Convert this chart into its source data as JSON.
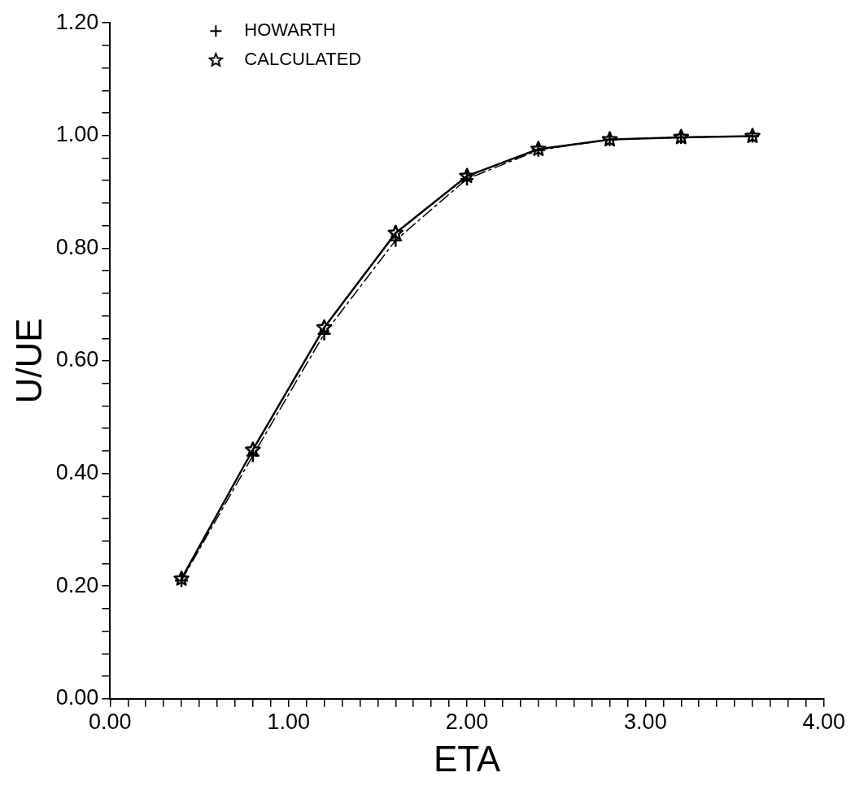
{
  "chart_data": {
    "type": "line",
    "xlabel": "ETA",
    "ylabel": "U/UE",
    "x": [
      0.4,
      0.8,
      1.2,
      1.6,
      2.0,
      2.4,
      2.8,
      3.2,
      3.6
    ],
    "series": [
      {
        "name": "HOWARTH",
        "color": "#000000",
        "marker": "cross",
        "line_style": "dashed",
        "values": [
          0.21,
          0.432,
          0.648,
          0.814,
          0.923,
          0.974,
          0.993,
          0.997,
          0.999
        ]
      },
      {
        "name": "CALCULATED",
        "color": "#000000",
        "marker": "star",
        "line_style": "solid",
        "values": [
          0.213,
          0.442,
          0.659,
          0.827,
          0.928,
          0.976,
          0.993,
          0.997,
          0.999
        ]
      }
    ],
    "xlim": [
      0,
      4
    ],
    "ylim": [
      0,
      1.2
    ],
    "xticks": [
      {
        "value": 0,
        "label": "0.00"
      },
      {
        "value": 0.1,
        "label": null
      },
      {
        "value": 0.2,
        "label": null
      },
      {
        "value": 0.3,
        "label": null
      },
      {
        "value": 0.4,
        "label": null
      },
      {
        "value": 0.5,
        "label": null
      },
      {
        "value": 0.6,
        "label": null
      },
      {
        "value": 0.7,
        "label": null
      },
      {
        "value": 0.8,
        "label": null
      },
      {
        "value": 0.9,
        "label": null
      },
      {
        "value": 1,
        "label": "1.00"
      },
      {
        "value": 1.1,
        "label": null
      },
      {
        "value": 1.2,
        "label": null
      },
      {
        "value": 1.3,
        "label": null
      },
      {
        "value": 1.4,
        "label": null
      },
      {
        "value": 1.5,
        "label": null
      },
      {
        "value": 1.6,
        "label": null
      },
      {
        "value": 1.7,
        "label": null
      },
      {
        "value": 1.8,
        "label": null
      },
      {
        "value": 1.9,
        "label": null
      },
      {
        "value": 2,
        "label": "2.00"
      },
      {
        "value": 2.1,
        "label": null
      },
      {
        "value": 2.2,
        "label": null
      },
      {
        "value": 2.3,
        "label": null
      },
      {
        "value": 2.4,
        "label": null
      },
      {
        "value": 2.5,
        "label": null
      },
      {
        "value": 2.6,
        "label": null
      },
      {
        "value": 2.7,
        "label": null
      },
      {
        "value": 2.8,
        "label": null
      },
      {
        "value": 2.9,
        "label": null
      },
      {
        "value": 3,
        "label": "3.00"
      },
      {
        "value": 3.1,
        "label": null
      },
      {
        "value": 3.2,
        "label": null
      },
      {
        "value": 3.3,
        "label": null
      },
      {
        "value": 3.4,
        "label": null
      },
      {
        "value": 3.5,
        "label": null
      },
      {
        "value": 3.6,
        "label": null
      },
      {
        "value": 3.7,
        "label": null
      },
      {
        "value": 3.8,
        "label": null
      },
      {
        "value": 3.9,
        "label": null
      },
      {
        "value": 4,
        "label": "4.00"
      }
    ],
    "yticks": [
      {
        "value": 0,
        "label": "0.00"
      },
      {
        "value": 0.04,
        "label": null
      },
      {
        "value": 0.08,
        "label": null
      },
      {
        "value": 0.12,
        "label": null
      },
      {
        "value": 0.16,
        "label": null
      },
      {
        "value": 0.2,
        "label": "0.20"
      },
      {
        "value": 0.24,
        "label": null
      },
      {
        "value": 0.28,
        "label": null
      },
      {
        "value": 0.32,
        "label": null
      },
      {
        "value": 0.36,
        "label": null
      },
      {
        "value": 0.4,
        "label": "0.40"
      },
      {
        "value": 0.44,
        "label": null
      },
      {
        "value": 0.48,
        "label": null
      },
      {
        "value": 0.52,
        "label": null
      },
      {
        "value": 0.56,
        "label": null
      },
      {
        "value": 0.6,
        "label": "0.60"
      },
      {
        "value": 0.64,
        "label": null
      },
      {
        "value": 0.68,
        "label": null
      },
      {
        "value": 0.72,
        "label": null
      },
      {
        "value": 0.76,
        "label": null
      },
      {
        "value": 0.8,
        "label": "0.80"
      },
      {
        "value": 0.84,
        "label": null
      },
      {
        "value": 0.88,
        "label": null
      },
      {
        "value": 0.92,
        "label": null
      },
      {
        "value": 0.96,
        "label": null
      },
      {
        "value": 1,
        "label": "1.00"
      },
      {
        "value": 1.04,
        "label": null
      },
      {
        "value": 1.08,
        "label": null
      },
      {
        "value": 1.12,
        "label": null
      },
      {
        "value": 1.16,
        "label": null
      },
      {
        "value": 1.2,
        "label": "1.20"
      }
    ],
    "grid": false,
    "legend": "top left"
  }
}
